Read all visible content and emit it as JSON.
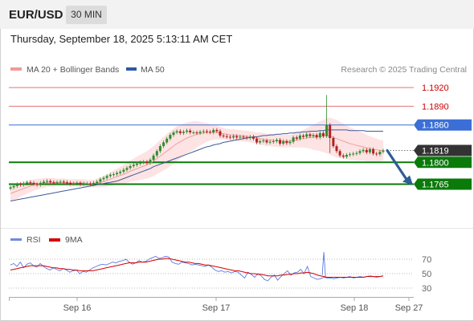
{
  "header": {
    "symbol": "EUR/USD",
    "timeframe": "30 MIN"
  },
  "dateline": "Thursday, September 18, 2025 5:13:11 AM CET",
  "legend": {
    "ma_bb": "MA 20 + Bollinger Bands",
    "ma50": "MA 50",
    "credit": "Research © 2025 Trading Central"
  },
  "rsi_legend": {
    "rsi": "RSI",
    "ma": "9MA"
  },
  "colors": {
    "resistance": "#e57373",
    "resistance_text": "#cc0000",
    "pivot": "#3b6fd6",
    "support": "#0a7a0a",
    "last": "#333333",
    "arrow": "#2f5d95",
    "bollinger": "#fde3e3",
    "ma20": "#f0a0a0",
    "ma50": "#3f5a9a",
    "candle_up": "#2e8b2e",
    "candle_down": "#b22222",
    "rsi": "#5b7be0",
    "rsi_ma": "#d40000"
  },
  "chart_data": [
    {
      "type": "candlestick",
      "title": "EUR/USD",
      "timeframe": "30 MIN",
      "ylim": [
        1.17,
        1.196
      ],
      "levels": [
        {
          "label": "1.1920",
          "value": 1.192,
          "kind": "resistance"
        },
        {
          "label": "1.1890",
          "value": 1.189,
          "kind": "resistance"
        },
        {
          "label": "1.1860",
          "value": 1.186,
          "kind": "pivot"
        },
        {
          "label": "1.1819",
          "value": 1.1819,
          "kind": "last"
        },
        {
          "label": "1.1800",
          "value": 1.18,
          "kind": "support"
        },
        {
          "label": "1.1765",
          "value": 1.1765,
          "kind": "support"
        }
      ],
      "x_ticks": [
        "Sep 16",
        "Sep 17",
        "Sep 18",
        "Sep 27"
      ],
      "forecast": {
        "from": 1.1819,
        "to": 1.1765,
        "direction": "down"
      },
      "close_series": [
        1.176,
        1.1762,
        1.1765,
        1.1764,
        1.1766,
        1.1768,
        1.1767,
        1.1765,
        1.1764,
        1.1767,
        1.1769,
        1.177,
        1.1768,
        1.1767,
        1.1768,
        1.1769,
        1.1768,
        1.1767,
        1.1766,
        1.1766,
        1.1767,
        1.1765,
        1.1766,
        1.1766,
        1.1765,
        1.1767,
        1.1769,
        1.1773,
        1.1775,
        1.1778,
        1.178,
        1.1781,
        1.1783,
        1.1785,
        1.1788,
        1.1791,
        1.1794,
        1.1796,
        1.1798,
        1.18,
        1.1801,
        1.1799,
        1.1804,
        1.1811,
        1.1818,
        1.1826,
        1.1832,
        1.1838,
        1.1844,
        1.1848,
        1.185,
        1.1847,
        1.1849,
        1.1851,
        1.1848,
        1.1848,
        1.1847,
        1.1849,
        1.185,
        1.1849,
        1.1848,
        1.1852,
        1.185,
        1.1843,
        1.1842,
        1.1841,
        1.184,
        1.1842,
        1.184,
        1.1841,
        1.184,
        1.1839,
        1.1841,
        1.1838,
        1.1832,
        1.1834,
        1.1835,
        1.1832,
        1.1833,
        1.1834,
        1.1836,
        1.183,
        1.1834,
        1.1831,
        1.1833,
        1.184,
        1.1838,
        1.1843,
        1.1841,
        1.1845,
        1.1842,
        1.1844,
        1.184,
        1.1847,
        1.1842,
        1.186,
        1.1839,
        1.1826,
        1.1818,
        1.1811,
        1.1809,
        1.1812,
        1.1813,
        1.1814,
        1.1815,
        1.1818,
        1.182,
        1.1816,
        1.1821,
        1.1814,
        1.1813,
        1.1817,
        1.1819
      ],
      "ma20_series": [
        1.175,
        1.1752,
        1.1754,
        1.1756,
        1.1758,
        1.176,
        1.1762,
        1.1764,
        1.1765,
        1.1766,
        1.1767,
        1.1768,
        1.1768,
        1.1768,
        1.1768,
        1.1768,
        1.1768,
        1.1767,
        1.1767,
        1.1767,
        1.1767,
        1.1767,
        1.1767,
        1.1766,
        1.1766,
        1.1766,
        1.1767,
        1.1768,
        1.1769,
        1.1771,
        1.1773,
        1.1775,
        1.1777,
        1.1779,
        1.1781,
        1.1783,
        1.1786,
        1.1788,
        1.179,
        1.1792,
        1.1794,
        1.1796,
        1.1799,
        1.1802,
        1.1806,
        1.181,
        1.1814,
        1.1818,
        1.1822,
        1.1826,
        1.183,
        1.1833,
        1.1836,
        1.1839,
        1.1841,
        1.1843,
        1.1845,
        1.1846,
        1.1847,
        1.1848,
        1.1848,
        1.1848,
        1.1848,
        1.1847,
        1.1846,
        1.1845,
        1.1844,
        1.1844,
        1.1843,
        1.1843,
        1.1842,
        1.1842,
        1.1841,
        1.184,
        1.1839,
        1.1838,
        1.1837,
        1.1836,
        1.1836,
        1.1835,
        1.1835,
        1.1834,
        1.1834,
        1.1834,
        1.1834,
        1.1835,
        1.1836,
        1.1837,
        1.1838,
        1.1839,
        1.184,
        1.184,
        1.1841,
        1.1842,
        1.1842,
        1.1843,
        1.1842,
        1.184,
        1.1838,
        1.1836,
        1.1834,
        1.1832,
        1.183,
        1.1829,
        1.1827,
        1.1826,
        1.1825,
        1.1823,
        1.1822,
        1.1821,
        1.182,
        1.1819,
        1.1819
      ],
      "ma50_series": [
        1.1738,
        1.1739,
        1.174,
        1.1741,
        1.1742,
        1.1743,
        1.1744,
        1.1745,
        1.1746,
        1.1747,
        1.1748,
        1.1749,
        1.175,
        1.1751,
        1.1752,
        1.1753,
        1.1754,
        1.1755,
        1.1756,
        1.1757,
        1.1758,
        1.1759,
        1.176,
        1.1761,
        1.1762,
        1.1763,
        1.1764,
        1.1765,
        1.1766,
        1.1767,
        1.1768,
        1.1769,
        1.177,
        1.1772,
        1.1774,
        1.1776,
        1.1778,
        1.178,
        1.1782,
        1.1784,
        1.1786,
        1.1788,
        1.179,
        1.1793,
        1.1795,
        1.1797,
        1.1799,
        1.1801,
        1.1803,
        1.1805,
        1.1807,
        1.1809,
        1.1811,
        1.1813,
        1.1815,
        1.1817,
        1.1819,
        1.1821,
        1.1823,
        1.1825,
        1.1826,
        1.1828,
        1.1829,
        1.183,
        1.1832,
        1.1833,
        1.1834,
        1.1835,
        1.1836,
        1.1837,
        1.1838,
        1.1839,
        1.184,
        1.1841,
        1.1841,
        1.1842,
        1.1843,
        1.1843,
        1.1844,
        1.1844,
        1.1845,
        1.1845,
        1.1846,
        1.1846,
        1.1847,
        1.1847,
        1.1848,
        1.1848,
        1.1849,
        1.1849,
        1.185,
        1.185,
        1.185,
        1.1851,
        1.1851,
        1.1852,
        1.1852,
        1.1852,
        1.1852,
        1.1852,
        1.1852,
        1.1852,
        1.1851,
        1.1851,
        1.1851,
        1.1851,
        1.1851,
        1.185,
        1.185,
        1.185,
        1.185,
        1.185,
        1.185
      ],
      "bb_width_series": [
        0.0012,
        0.0012,
        0.0012,
        0.0011,
        0.0011,
        0.001,
        0.001,
        0.0009,
        0.0009,
        0.0008,
        0.0008,
        0.0007,
        0.0007,
        0.0007,
        0.0006,
        0.0006,
        0.0006,
        0.0006,
        0.0006,
        0.0006,
        0.0006,
        0.0006,
        0.0006,
        0.0006,
        0.0006,
        0.0006,
        0.0007,
        0.0008,
        0.0009,
        0.001,
        0.0011,
        0.0012,
        0.0013,
        0.0014,
        0.0015,
        0.0016,
        0.0017,
        0.0018,
        0.0019,
        0.002,
        0.0021,
        0.0022,
        0.0023,
        0.0024,
        0.0025,
        0.0026,
        0.0027,
        0.0028,
        0.0028,
        0.0028,
        0.0028,
        0.0027,
        0.0026,
        0.0025,
        0.0024,
        0.0023,
        0.0021,
        0.0019,
        0.0017,
        0.0015,
        0.0013,
        0.0012,
        0.0011,
        0.001,
        0.0009,
        0.0009,
        0.0009,
        0.0009,
        0.0009,
        0.0009,
        0.0009,
        0.0009,
        0.0009,
        0.0009,
        0.0009,
        0.001,
        0.001,
        0.001,
        0.001,
        0.001,
        0.001,
        0.001,
        0.001,
        0.001,
        0.001,
        0.0011,
        0.0012,
        0.0013,
        0.0014,
        0.0016,
        0.0018,
        0.002,
        0.0022,
        0.0024,
        0.0026,
        0.0028,
        0.003,
        0.003,
        0.003,
        0.0029,
        0.0028,
        0.0027,
        0.0026,
        0.0025,
        0.0024,
        0.0023,
        0.0022,
        0.0021,
        0.002,
        0.0019,
        0.0018,
        0.0017,
        0.0016
      ]
    },
    {
      "type": "line",
      "ylim": [
        20,
        85
      ],
      "y_ticks": [
        "70",
        "50",
        "30"
      ],
      "series": [
        {
          "name": "RSI",
          "values": [
            62,
            64,
            60,
            66,
            58,
            63,
            65,
            61,
            59,
            64,
            60,
            57,
            55,
            58,
            56,
            54,
            57,
            55,
            52,
            54,
            55,
            50,
            53,
            52,
            55,
            58,
            60,
            62,
            63,
            62,
            64,
            66,
            65,
            67,
            68,
            70,
            66,
            63,
            65,
            68,
            66,
            67,
            70,
            72,
            74,
            71,
            72,
            74,
            73,
            66,
            64,
            63,
            66,
            65,
            64,
            62,
            63,
            62,
            61,
            60,
            62,
            59,
            55,
            53,
            54,
            52,
            53,
            51,
            53,
            52,
            48,
            44,
            52,
            49,
            45,
            50,
            47,
            42,
            40,
            45,
            48,
            41,
            46,
            50,
            54,
            48,
            51,
            52,
            56,
            50,
            60,
            46,
            44,
            42,
            43,
            45,
            44,
            44,
            43,
            44,
            45,
            44,
            45,
            46,
            44,
            45,
            46,
            45,
            46,
            47,
            46,
            45,
            46,
            47
          ]
        },
        {
          "name": "9MA",
          "values": [
            55,
            56,
            57,
            58,
            59,
            60,
            61,
            61,
            61,
            61,
            61,
            60,
            59,
            58,
            58,
            57,
            57,
            56,
            56,
            55,
            55,
            54,
            54,
            54,
            54,
            54,
            55,
            56,
            57,
            58,
            59,
            60,
            61,
            62,
            63,
            64,
            65,
            65,
            65,
            66,
            66,
            66,
            67,
            68,
            69,
            70,
            70,
            71,
            71,
            70,
            69,
            68,
            67,
            66,
            66,
            65,
            64,
            64,
            63,
            62,
            62,
            61,
            60,
            59,
            58,
            57,
            56,
            55,
            54,
            54,
            53,
            52,
            51,
            50,
            50,
            49,
            49,
            48,
            47,
            47,
            47,
            47,
            48,
            48,
            49,
            49,
            50,
            50,
            51,
            51,
            52,
            51,
            50,
            48,
            47,
            46,
            45,
            45,
            45,
            45,
            45,
            45,
            45,
            45,
            45,
            45,
            45,
            45,
            46,
            46,
            46,
            46,
            46,
            47
          ]
        }
      ]
    }
  ]
}
